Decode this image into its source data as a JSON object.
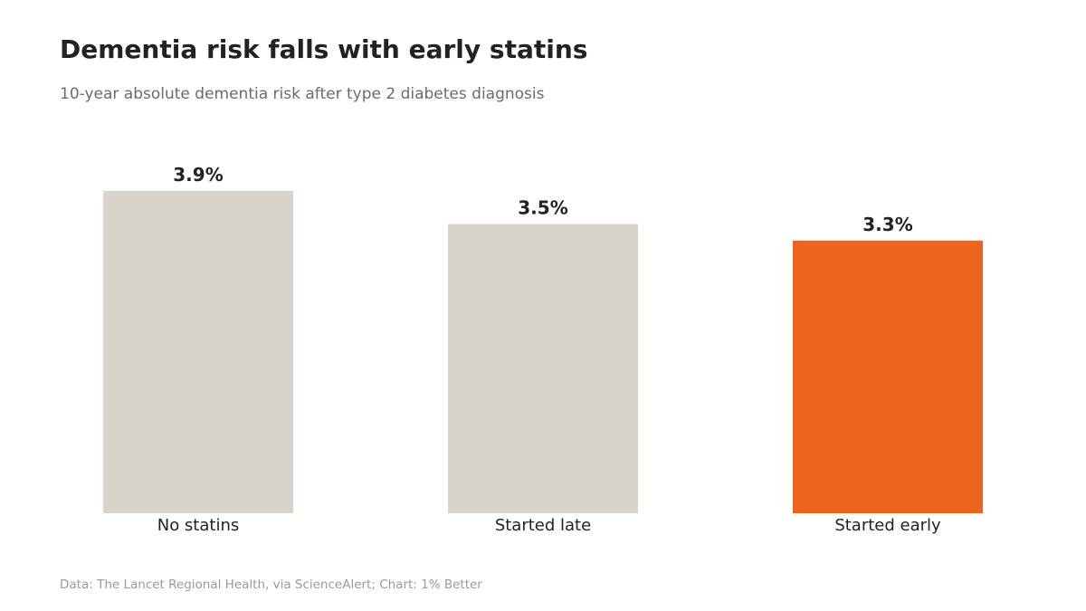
{
  "chart_data": {
    "type": "bar",
    "title": "Dementia risk falls with early statins",
    "subtitle": "10-year absolute dementia risk after type 2 diabetes diagnosis",
    "categories": [
      "No statins",
      "Started late",
      "Started early"
    ],
    "values": [
      3.9,
      3.5,
      3.3
    ],
    "value_labels": [
      "3.9%",
      "3.5%",
      "3.3%"
    ],
    "colors": [
      "#d9d4ca",
      "#d9d4ca",
      "#ec6520"
    ],
    "ylim": [
      0,
      3.9
    ],
    "grid": false,
    "source": "Data: The Lancet Regional Health, via ScienceAlert; Chart: 1% Better"
  }
}
